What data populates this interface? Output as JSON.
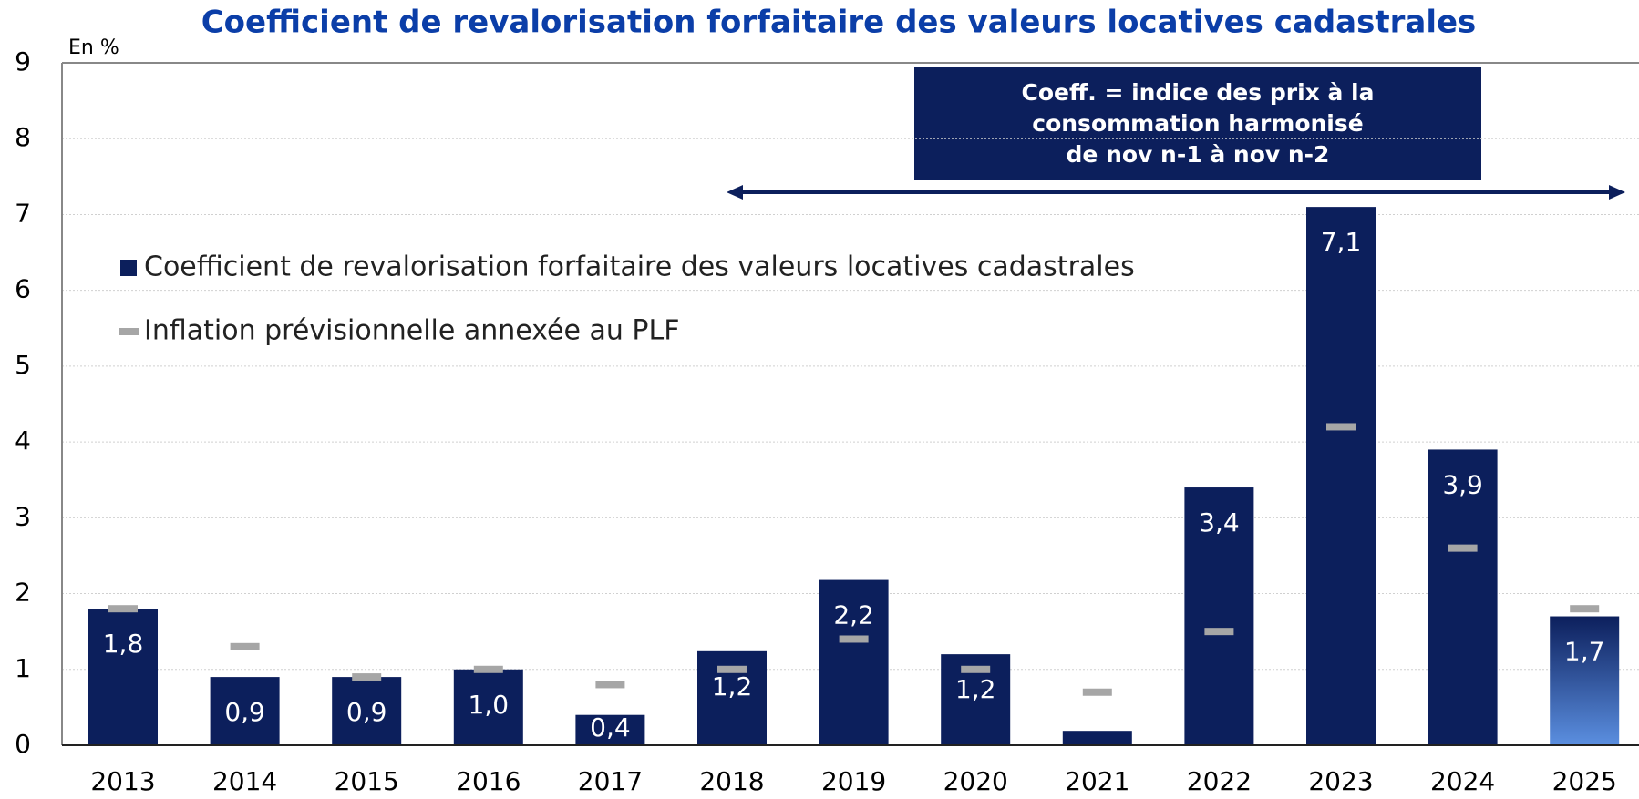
{
  "chart_data": {
    "type": "bar",
    "title": "Coefficient de revalorisation forfaitaire des valeurs locatives cadastrales",
    "y_unit": "En %",
    "annotation": [
      "Coeff. = indice des prix à la",
      "consommation harmonisé",
      "de nov n-1 à nov n-2"
    ],
    "categories": [
      "2013",
      "2014",
      "2015",
      "2016",
      "2017",
      "2018",
      "2019",
      "2020",
      "2021",
      "2022",
      "2023",
      "2024",
      "2025"
    ],
    "series": [
      {
        "name": "Coefficient de revalorisation forfaitaire des valeurs locatives cadastrales",
        "color": "#0c1f5c",
        "mark": "bar",
        "values": [
          1.8,
          0.9,
          0.9,
          1.0,
          0.4,
          1.24,
          2.18,
          1.2,
          0.19,
          3.4,
          7.1,
          3.9,
          1.7
        ],
        "value_labels": [
          "1,8",
          "0,9",
          "0,9",
          "1,0",
          "0,4",
          "1,2",
          "2,2",
          "1,2",
          null,
          "3,4",
          "7,1",
          "3,9",
          "1,7"
        ]
      },
      {
        "name": "Inflation prévisionnelle annexée au PLF",
        "color": "#a6a6a6",
        "mark": "dash",
        "values": [
          1.8,
          1.3,
          0.9,
          1.0,
          0.8,
          1.0,
          1.4,
          1.0,
          0.7,
          1.5,
          4.2,
          2.6,
          1.8
        ]
      }
    ],
    "ylim": [
      0,
      9
    ],
    "yticks": [
      0,
      1,
      2,
      3,
      4,
      5,
      6,
      7,
      8,
      9
    ],
    "grid": true
  }
}
